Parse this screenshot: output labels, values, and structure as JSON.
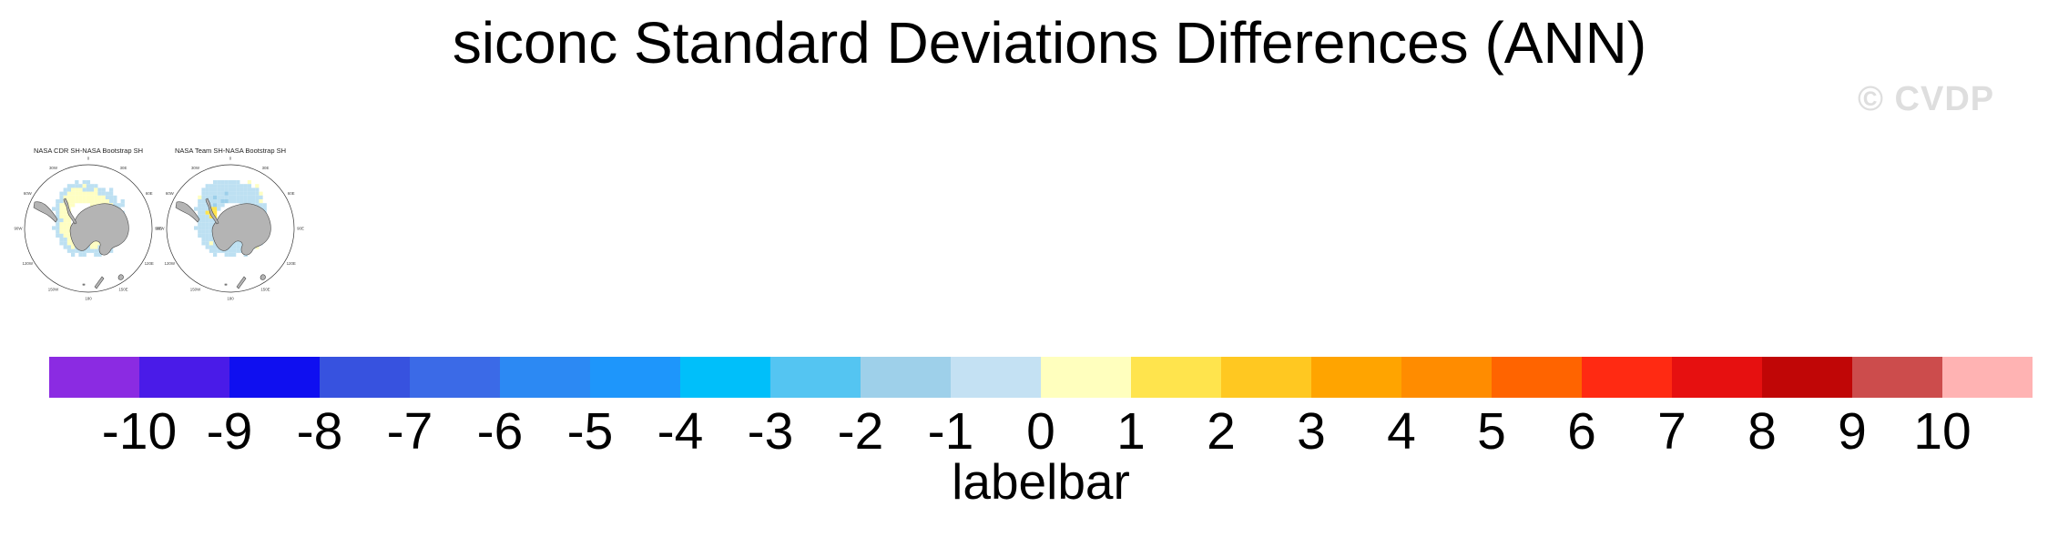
{
  "title": "siconc Standard Deviations Differences (ANN)",
  "watermark": "© CVDP",
  "chart_data": {
    "type": "heatmap",
    "title": "siconc Standard Deviations Differences (ANN)",
    "subtitle": "",
    "panels": [
      {
        "title": "NASA CDR SH-NASA Bootstrap SH",
        "projection": "polar-stereographic-southern-hemisphere",
        "grid_legend": "rows of 22 cells; . = no data, y = pale yellow (0 to 1), Y = yellow (1 to 2), b = pale blue (-1 to 0), B = light blue (-2 to -1)",
        "grid": [
          "......b.bb............",
          "....bbbbybbb..........",
          "...bbyyybbbybb.b......",
          "..bbyyyyyyyybbbb......",
          "..byyyyyyyyyyybbb.....",
          ".bbyyyyyyyyyyyybb.b...",
          ".byyyy....yyyyyybbb...",
          "bbyyy......yyyyybb....",
          ".byyy.......yyyybbb...",
          ".byyy........yyybb....",
          ".bbyy........yybbb....",
          ".byyy........yybb.b...",
          "bbyyy.......yyybb.....",
          ".byyyy......yyyybb....",
          ".bbyyyy...yyyyybbb....",
          "..bbyyyyyyyyyybbb.b...",
          "..bbyyyyyyyyybbbb.....",
          "...bbybyybyybbbb......",
          "....bbbbbbbbbb.b......",
          ".....b.bb..bb.........",
          "......................",
          "......................"
        ]
      },
      {
        "title": "NASA Team SH-NASA Bootstrap SH",
        "projection": "polar-stereographic-southern-hemisphere",
        "grid_legend": "rows of 22 cells; . = no data, y = pale yellow (0 to 1), Y = yellow (1 to 2), b = pale blue (-1 to 0), B = light blue (-2 to -1)",
        "grid": [
          ".....bbbbbbb..y.......",
          "...bbbbbbbbbbbb.y.....",
          "..bbbbbbbbbbbbbbb.....",
          "..bbbbbbBbbbbbbbby....",
          ".ybbbBbbbbbbbbbbbb....",
          ".bbbbbbBBbbbbbbbby....",
          ".bbbbBbb....bbbbbbb...",
          "bbbbYYb......ybbbbb...",
          ".bbYYY.......bbbbbb...",
          ".bbbYY.......ybbbbb...",
          ".bbbbb........bbbbb...",
          ".bbbbb........ybbbb...",
          "bbbbbb.......ybbbbb...",
          ".bbbbbb.....ybbbbbb...",
          ".bbbbbbb...bbbbybbb...",
          "..bbbbbbbbbbbbbbbb....",
          "..bbybbbbbbbbybbbb....",
          "...bbbbbbbbbbbbby.....",
          "....bbbbbbbbbbb.......",
          ".....b..bbb..b........",
          "......................",
          "......................"
        ]
      }
    ],
    "lon_labels": [
      "0",
      "30E",
      "60E",
      "90E",
      "120E",
      "150E",
      "180",
      "150W",
      "120W",
      "90W",
      "60W",
      "30W"
    ],
    "cell_colors": {
      "y": "#FEFEC2",
      "Y": "#FFE44D",
      "b": "#BDE0F2",
      "B": "#9CCFEA"
    },
    "land_color": "#B4B4B4",
    "coast_color": "#4A4A4A",
    "labelbar": {
      "label": "labelbar",
      "ticks": [
        "-10",
        "-9",
        "-8",
        "-7",
        "-6",
        "-5",
        "-4",
        "-3",
        "-2",
        "-1",
        "0",
        "1",
        "2",
        "3",
        "4",
        "5",
        "6",
        "7",
        "8",
        "9",
        "10"
      ],
      "colors": [
        "#8B2BE2",
        "#4A1BE8",
        "#0F0FF0",
        "#3752DF",
        "#3B6AE7",
        "#2C89F3",
        "#1E96FB",
        "#00BFFA",
        "#54C5F2",
        "#9ED0EA",
        "#C4E1F3",
        "#FFFFBE",
        "#FFE44D",
        "#FFC821",
        "#FFA400",
        "#FF8C00",
        "#FF6400",
        "#FF2A12",
        "#E61010",
        "#C00606",
        "#CC4C4C",
        "#FFB3B3"
      ]
    }
  }
}
